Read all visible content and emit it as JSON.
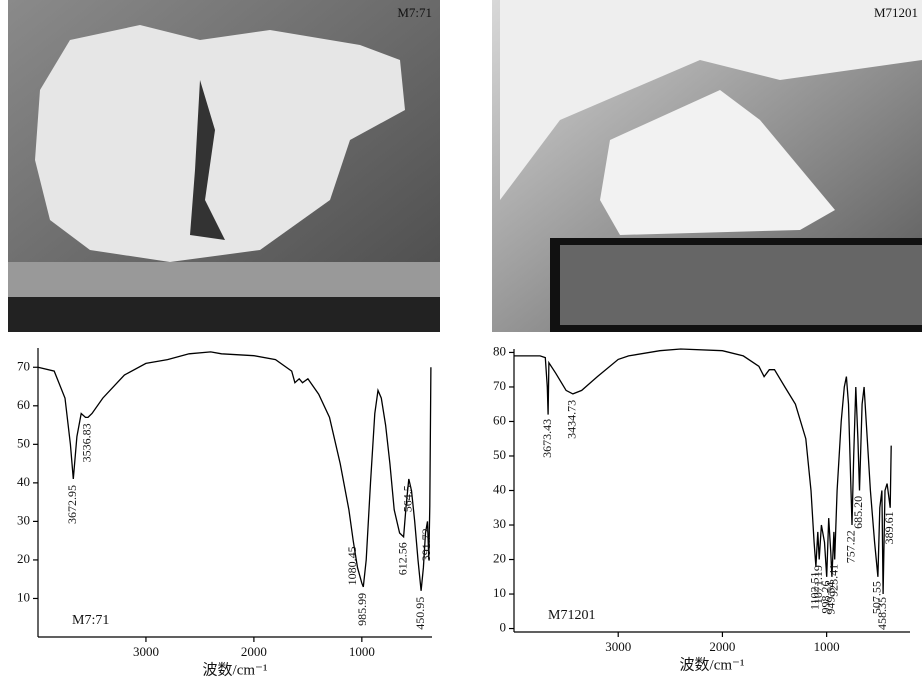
{
  "photos": [
    {
      "label": "M7:71"
    },
    {
      "label": "M71201"
    }
  ],
  "chart_data": [
    {
      "type": "line",
      "sample": "M7:71",
      "x_label": "波数/cm⁻¹",
      "color": "#000000",
      "x": [
        4000,
        3850,
        3750,
        3700,
        3673,
        3640,
        3600,
        3560,
        3537,
        3500,
        3400,
        3200,
        3000,
        2800,
        2600,
        2400,
        2300,
        2000,
        1800,
        1650,
        1620,
        1580,
        1550,
        1500,
        1400,
        1300,
        1200,
        1120,
        1080,
        1040,
        1000,
        986,
        960,
        920,
        880,
        850,
        820,
        780,
        740,
        700,
        650,
        613,
        590,
        565,
        540,
        510,
        480,
        451,
        430,
        410,
        392,
        380,
        370,
        360
      ],
      "values": [
        70,
        69,
        62,
        50,
        41,
        52,
        58,
        57,
        57,
        58,
        62,
        68,
        71,
        72,
        73.5,
        74,
        73.5,
        73,
        72,
        69,
        66,
        67,
        66,
        67,
        63,
        57,
        45,
        33,
        25,
        18,
        14,
        13,
        20,
        40,
        58,
        64,
        62,
        55,
        45,
        33,
        27,
        26,
        34,
        41,
        38,
        30,
        20,
        12,
        18,
        27,
        30,
        20,
        34,
        70
      ],
      "peaks": [
        3672.95,
        3536.83,
        1080.45,
        985.99,
        612.56,
        564.5,
        450.95,
        391.72
      ],
      "xlim": [
        4000,
        350
      ],
      "ylim": [
        0,
        75
      ],
      "xticks": [
        3000,
        2000,
        1000
      ],
      "yticks": [
        10,
        20,
        30,
        40,
        50,
        60,
        70
      ]
    },
    {
      "type": "line",
      "sample": "M71201",
      "x_label": "波数/cm⁻¹",
      "color": "#000000",
      "x": [
        4000,
        3750,
        3700,
        3680,
        3673,
        3665,
        3600,
        3500,
        3435,
        3350,
        3200,
        3000,
        2900,
        2600,
        2400,
        2000,
        1800,
        1650,
        1600,
        1550,
        1500,
        1400,
        1300,
        1200,
        1150,
        1120,
        1103,
        1085,
        1071,
        1050,
        1020,
        999,
        980,
        960,
        949,
        930,
        923,
        900,
        860,
        830,
        810,
        790,
        757,
        740,
        720,
        700,
        685,
        660,
        640,
        620,
        580,
        540,
        508,
        490,
        470,
        458,
        440,
        420,
        390,
        380
      ],
      "values": [
        79,
        79,
        78.5,
        70,
        62,
        77,
        74,
        69,
        68,
        69,
        73,
        78,
        79,
        80.5,
        81,
        80.5,
        79,
        76,
        73,
        75,
        75,
        70,
        65,
        55,
        40,
        25,
        18,
        28,
        20,
        30,
        25,
        15,
        32,
        22,
        15,
        28,
        20,
        40,
        60,
        70,
        73,
        65,
        30,
        50,
        70,
        55,
        40,
        65,
        70,
        60,
        40,
        25,
        15,
        35,
        40,
        10,
        40,
        42,
        35,
        53
      ],
      "peaks": [
        3673.43,
        3434.73,
        1102.51,
        1071.19,
        998.26,
        923.41,
        949.54,
        757.22,
        {
          "value": 685.2,
          "label": "685.20"
        },
        507.55,
        458.35,
        389.61
      ],
      "xlim": [
        4000,
        200
      ],
      "ylim": [
        -1,
        81
      ],
      "xticks": [
        3000,
        2000,
        1000
      ],
      "yticks": [
        0,
        10,
        20,
        30,
        40,
        50,
        60,
        70,
        80
      ]
    }
  ]
}
